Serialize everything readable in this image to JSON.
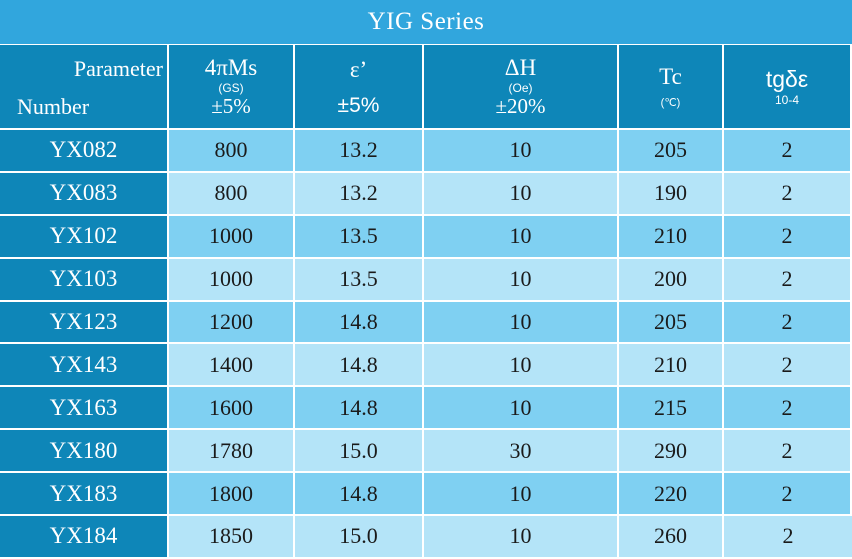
{
  "title": "YIG Series",
  "header": {
    "parameter": "Parameter",
    "number": "Number",
    "ms": {
      "label": "4πMs",
      "unit": "(GS)",
      "tol": "±5%"
    },
    "eps": {
      "label": "ε’",
      "tol": "±5%"
    },
    "dh": {
      "label": "ΔH",
      "unit": "(Oe)",
      "tol": "±20%"
    },
    "tc": {
      "label": "Tc",
      "unit": "(℃)"
    },
    "tg": {
      "label": "tgδε",
      "unit": "10-4"
    }
  },
  "rows": [
    {
      "number": "YX082",
      "ms": "800",
      "eps": "13.2",
      "dh": "10",
      "tc": "205",
      "tg": "2"
    },
    {
      "number": "YX083",
      "ms": "800",
      "eps": "13.2",
      "dh": "10",
      "tc": "190",
      "tg": "2"
    },
    {
      "number": "YX102",
      "ms": "1000",
      "eps": "13.5",
      "dh": "10",
      "tc": "210",
      "tg": "2"
    },
    {
      "number": "YX103",
      "ms": "1000",
      "eps": "13.5",
      "dh": "10",
      "tc": "200",
      "tg": "2"
    },
    {
      "number": "YX123",
      "ms": "1200",
      "eps": "14.8",
      "dh": "10",
      "tc": "205",
      "tg": "2"
    },
    {
      "number": "YX143",
      "ms": "1400",
      "eps": "14.8",
      "dh": "10",
      "tc": "210",
      "tg": "2"
    },
    {
      "number": "YX163",
      "ms": "1600",
      "eps": "14.8",
      "dh": "10",
      "tc": "215",
      "tg": "2"
    },
    {
      "number": "YX180",
      "ms": "1780",
      "eps": "15.0",
      "dh": "30",
      "tc": "290",
      "tg": "2"
    },
    {
      "number": "YX183",
      "ms": "1800",
      "eps": "14.8",
      "dh": "10",
      "tc": "220",
      "tg": "2"
    },
    {
      "number": "YX184",
      "ms": "1850",
      "eps": "15.0",
      "dh": "10",
      "tc": "260",
      "tg": "2"
    }
  ],
  "colors": {
    "title_bg": "#31a6dd",
    "header_bg": "#0e86b8",
    "row_odd": "#7fd0f2",
    "row_even": "#b4e4f8"
  }
}
